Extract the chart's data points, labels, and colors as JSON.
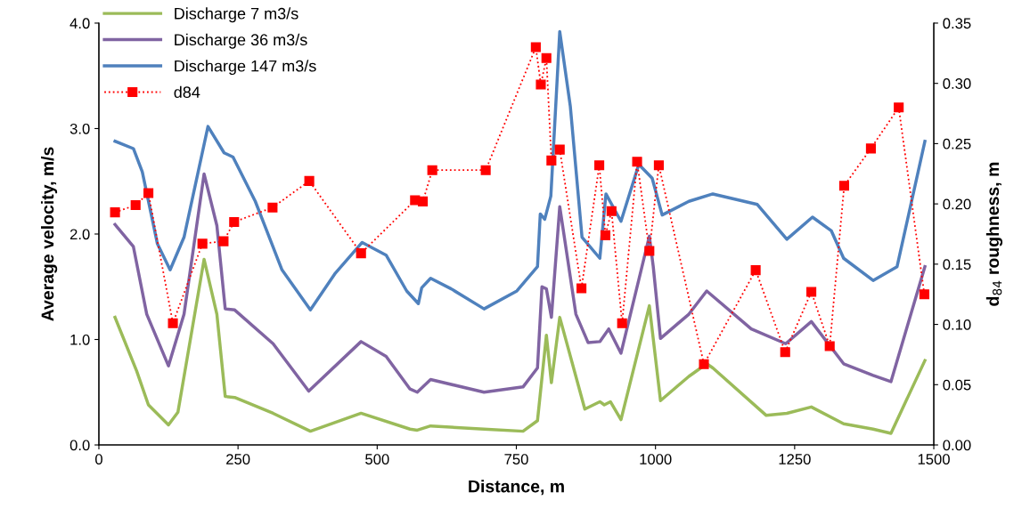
{
  "chart_data": {
    "type": "line",
    "xlabel": "Distance, m",
    "ylabel": "Average velocity, m/s",
    "y2label": "d$_{84}$ roughness, m",
    "xlim": [
      0,
      1500
    ],
    "xticks": [
      0,
      250,
      500,
      750,
      1000,
      1250,
      1500
    ],
    "ylim": [
      0,
      4
    ],
    "yticks": [
      {
        "value": 0,
        "label": "0.0"
      },
      {
        "value": 1,
        "label": "1.0"
      },
      {
        "value": 2,
        "label": "2.0"
      },
      {
        "value": 3,
        "label": "3.0"
      },
      {
        "value": 4,
        "label": "4.0"
      }
    ],
    "y2lim": [
      0,
      0.35
    ],
    "y2ticks": [
      {
        "value": 0,
        "label": "0.00"
      },
      {
        "value": 0.05,
        "label": "0.05"
      },
      {
        "value": 0.1,
        "label": "0.10"
      },
      {
        "value": 0.15,
        "label": "0.15"
      },
      {
        "value": 0.2,
        "label": "0.20"
      },
      {
        "value": 0.25,
        "label": "0.25"
      },
      {
        "value": 0.3,
        "label": "0.30"
      },
      {
        "value": 0.35,
        "label": "0.35"
      }
    ],
    "grid": false,
    "legend": "top left",
    "series": [
      {
        "name": "Discharge 7 m3/s",
        "color": "#9bbb59",
        "marker": "none",
        "line_style": "solid",
        "x": [
          29,
          68,
          89,
          125,
          142,
          189,
          212,
          227,
          244,
          313,
          380,
          471,
          559,
          572,
          596,
          692,
          762,
          788,
          804,
          813,
          828,
          873,
          900,
          908,
          919,
          938,
          989,
          1009,
          1060,
          1092,
          1103,
          1199,
          1236,
          1280,
          1338,
          1391,
          1423,
          1484
        ],
        "values": [
          1.21,
          0.7,
          0.38,
          0.19,
          0.31,
          1.76,
          1.24,
          0.46,
          0.45,
          0.3,
          0.13,
          0.3,
          0.15,
          0.14,
          0.18,
          0.15,
          0.13,
          0.23,
          1.04,
          0.59,
          1.21,
          0.34,
          0.41,
          0.38,
          0.41,
          0.24,
          1.32,
          0.42,
          0.65,
          0.77,
          0.73,
          0.28,
          0.3,
          0.36,
          0.2,
          0.15,
          0.11,
          0.8
        ]
      },
      {
        "name": "Discharge 36 m3/s",
        "color": "#8064a2",
        "marker": "none",
        "line_style": "solid",
        "x": [
          29,
          62,
          86,
          125,
          153,
          189,
          212,
          227,
          244,
          313,
          377,
          471,
          516,
          559,
          572,
          596,
          692,
          762,
          788,
          796,
          804,
          813,
          828,
          857,
          879,
          900,
          916,
          938,
          989,
          996,
          1009,
          1060,
          1092,
          1172,
          1234,
          1280,
          1338,
          1391,
          1423,
          1484
        ],
        "values": [
          2.09,
          1.88,
          1.24,
          0.75,
          1.24,
          2.57,
          2.08,
          1.29,
          1.28,
          0.96,
          0.51,
          0.98,
          0.84,
          0.53,
          0.5,
          0.62,
          0.5,
          0.55,
          0.73,
          1.5,
          1.48,
          1.21,
          2.26,
          1.24,
          0.97,
          0.98,
          1.1,
          0.87,
          1.98,
          1.69,
          1.01,
          1.24,
          1.46,
          1.1,
          0.96,
          1.17,
          0.77,
          0.66,
          0.6,
          1.69
        ]
      },
      {
        "name": "Discharge 147 m3/s",
        "color": "#4f81bd",
        "marker": "none",
        "line_style": "solid",
        "x": [
          29,
          62,
          78,
          105,
          128,
          153,
          196,
          225,
          241,
          281,
          329,
          380,
          425,
          473,
          516,
          553,
          574,
          580,
          596,
          633,
          692,
          751,
          788,
          793,
          801,
          812,
          828,
          847,
          868,
          900,
          911,
          938,
          970,
          994,
          1012,
          1060,
          1103,
          1183,
          1236,
          1282,
          1316,
          1338,
          1391,
          1434,
          1484
        ],
        "values": [
          2.88,
          2.81,
          2.59,
          1.91,
          1.66,
          1.97,
          3.02,
          2.77,
          2.73,
          2.31,
          1.66,
          1.28,
          1.63,
          1.92,
          1.8,
          1.46,
          1.34,
          1.49,
          1.58,
          1.48,
          1.29,
          1.46,
          1.69,
          2.19,
          2.14,
          2.36,
          3.92,
          3.21,
          1.97,
          1.77,
          2.38,
          2.12,
          2.66,
          2.53,
          2.18,
          2.31,
          2.38,
          2.28,
          1.95,
          2.16,
          2.03,
          1.77,
          1.56,
          1.69,
          2.88
        ]
      },
      {
        "name": "d84",
        "color": "#ff0000",
        "marker": "square",
        "line_style": "dotted",
        "axis": "y2",
        "x": [
          29,
          66,
          89,
          133,
          186,
          224,
          243,
          312,
          378,
          471,
          568,
          582,
          599,
          695,
          785,
          794,
          804,
          813,
          828,
          867,
          899,
          910,
          921,
          940,
          967,
          989,
          1006,
          1087,
          1180,
          1233,
          1280,
          1313,
          1339,
          1387,
          1437,
          1483
        ],
        "values": [
          0.193,
          0.199,
          0.209,
          0.101,
          0.167,
          0.169,
          0.185,
          0.197,
          0.219,
          0.159,
          0.203,
          0.202,
          0.228,
          0.228,
          0.33,
          0.299,
          0.321,
          0.236,
          0.245,
          0.13,
          0.232,
          0.174,
          0.194,
          0.101,
          0.235,
          0.161,
          0.232,
          0.067,
          0.145,
          0.077,
          0.127,
          0.082,
          0.215,
          0.246,
          0.28,
          0.125
        ]
      }
    ]
  }
}
